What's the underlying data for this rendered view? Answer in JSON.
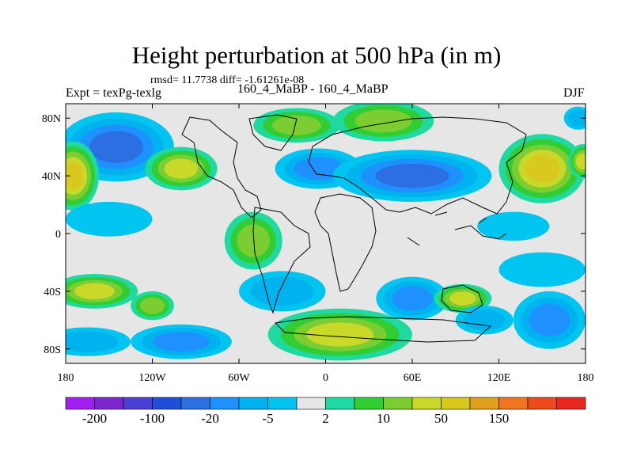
{
  "chart_data": {
    "type": "contour-map",
    "title": "Height perturbation at 500 hPa (in m)",
    "stats_text": "rmsd= 11.7738 diff= -1.61261e-08",
    "left_label": "Expt = texPg-texlg",
    "center_label": "160_4_MaBP - 160_4_MaBP",
    "right_label": "DJF",
    "x_range": [
      -180,
      180
    ],
    "y_range": [
      -90,
      90
    ],
    "x_ticks": [
      {
        "value": -180,
        "label": "180"
      },
      {
        "value": -120,
        "label": "120W"
      },
      {
        "value": -60,
        "label": "60W"
      },
      {
        "value": 0,
        "label": "0"
      },
      {
        "value": 60,
        "label": "60E"
      },
      {
        "value": 120,
        "label": "120E"
      },
      {
        "value": 180,
        "label": "180"
      }
    ],
    "y_ticks": [
      {
        "value": 80,
        "label": "80N"
      },
      {
        "value": 40,
        "label": "40N"
      },
      {
        "value": 0,
        "label": "0"
      },
      {
        "value": -40,
        "label": "40S"
      },
      {
        "value": -80,
        "label": "80S"
      }
    ],
    "colorbar": {
      "colors": [
        "#a020f0",
        "#7d26cd",
        "#4b3fd6",
        "#1f4fd9",
        "#2b6fe3",
        "#1e90ff",
        "#00b2ee",
        "#00c5f0",
        "#e6e6e6",
        "#1ed9a0",
        "#32cd32",
        "#7ccd32",
        "#c8d92a",
        "#d9c81e",
        "#e0a020",
        "#ee7620",
        "#ee4a20",
        "#e82820"
      ],
      "labels": [
        {
          "boundary": 1,
          "text": "-200"
        },
        {
          "boundary": 3,
          "text": "-100"
        },
        {
          "boundary": 5,
          "text": "-20"
        },
        {
          "boundary": 7,
          "text": "-5"
        },
        {
          "boundary": 9,
          "text": "2"
        },
        {
          "boundary": 11,
          "text": "10"
        },
        {
          "boundary": 13,
          "text": "50"
        },
        {
          "boundary": 15,
          "text": "150"
        }
      ]
    },
    "anomaly_features": [
      {
        "lon": -145,
        "lat": 60,
        "rx": 40,
        "ry": 24,
        "value": -22
      },
      {
        "lon": -175,
        "lat": 40,
        "rx": 18,
        "ry": 24,
        "value": 55
      },
      {
        "lon": -100,
        "lat": 45,
        "rx": 25,
        "ry": 15,
        "value": 22
      },
      {
        "lon": -20,
        "lat": 75,
        "rx": 30,
        "ry": 12,
        "value": 18
      },
      {
        "lon": 40,
        "lat": 78,
        "rx": 35,
        "ry": 14,
        "value": 14
      },
      {
        "lon": -5,
        "lat": 45,
        "rx": 30,
        "ry": 14,
        "value": -12
      },
      {
        "lon": 60,
        "lat": 40,
        "rx": 55,
        "ry": 18,
        "value": -28
      },
      {
        "lon": 150,
        "lat": 45,
        "rx": 30,
        "ry": 24,
        "value": 60
      },
      {
        "lon": 178,
        "lat": 50,
        "rx": 10,
        "ry": 12,
        "value": 40
      },
      {
        "lon": -150,
        "lat": 10,
        "rx": 30,
        "ry": 12,
        "value": -4
      },
      {
        "lon": -50,
        "lat": -5,
        "rx": 20,
        "ry": 20,
        "value": 12
      },
      {
        "lon": -160,
        "lat": -40,
        "rx": 30,
        "ry": 12,
        "value": 22
      },
      {
        "lon": -120,
        "lat": -50,
        "rx": 15,
        "ry": 10,
        "value": 12
      },
      {
        "lon": -165,
        "lat": -75,
        "rx": 30,
        "ry": 10,
        "value": -6
      },
      {
        "lon": -100,
        "lat": -75,
        "rx": 35,
        "ry": 12,
        "value": -12
      },
      {
        "lon": -30,
        "lat": -40,
        "rx": 30,
        "ry": 14,
        "value": -10
      },
      {
        "lon": 10,
        "lat": -70,
        "rx": 50,
        "ry": 18,
        "value": 45
      },
      {
        "lon": 60,
        "lat": -45,
        "rx": 25,
        "ry": 15,
        "value": -14
      },
      {
        "lon": 95,
        "lat": -45,
        "rx": 20,
        "ry": 10,
        "value": 25
      },
      {
        "lon": 110,
        "lat": -60,
        "rx": 20,
        "ry": 10,
        "value": -6
      },
      {
        "lon": 155,
        "lat": -60,
        "rx": 25,
        "ry": 20,
        "value": -15
      },
      {
        "lon": 150,
        "lat": -25,
        "rx": 30,
        "ry": 12,
        "value": -4
      },
      {
        "lon": 130,
        "lat": 5,
        "rx": 25,
        "ry": 10,
        "value": -4
      },
      {
        "lon": 175,
        "lat": 80,
        "rx": 10,
        "ry": 8,
        "value": -6
      }
    ]
  }
}
